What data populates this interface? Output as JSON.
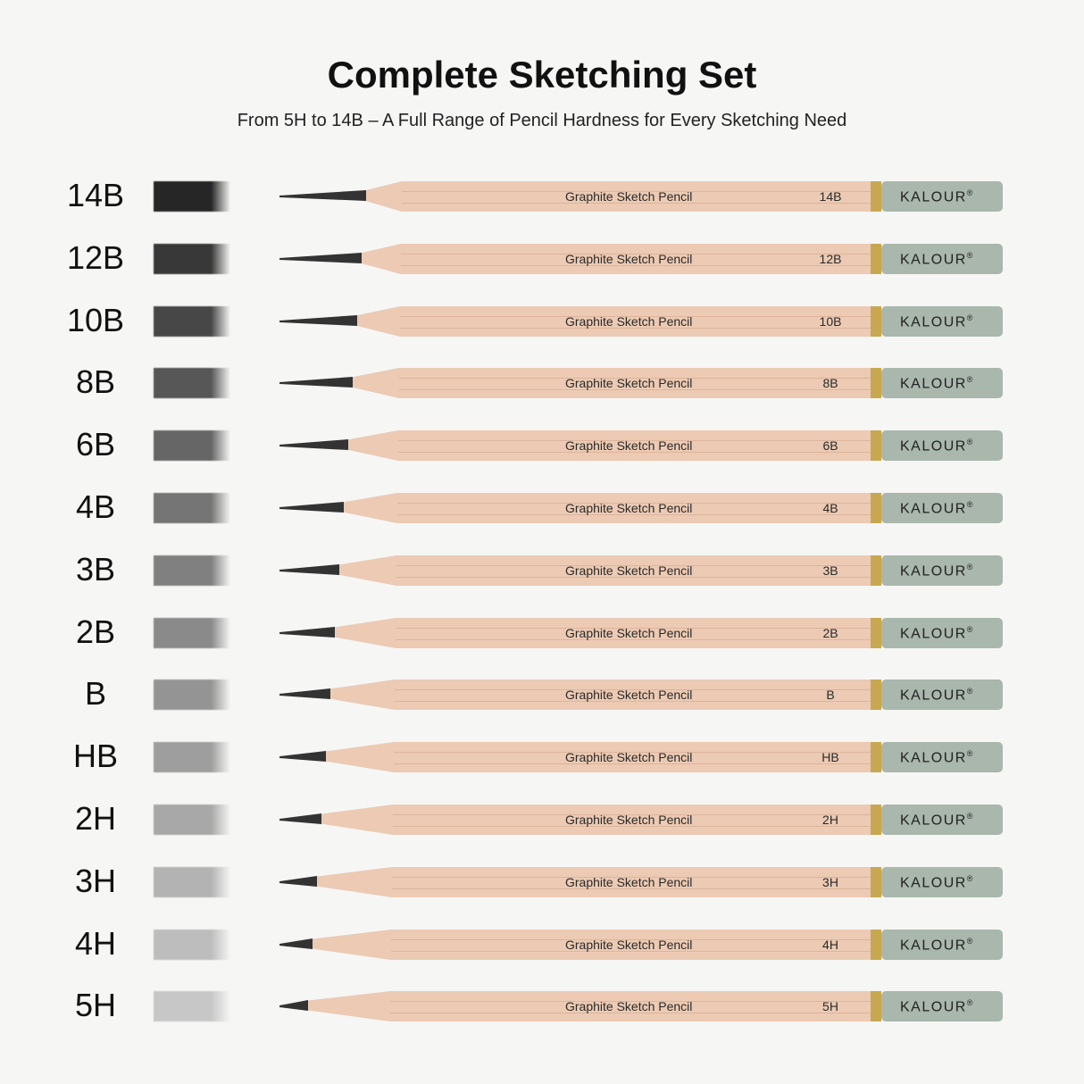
{
  "title": "Complete Sketching Set",
  "subtitle": "From 5H to 14B – A Full Range of Pencil Hardness for Every Sketching Need",
  "pencil_text": "Graphite Sketch Pencil",
  "brand": "KALOUR",
  "brand_mark": "®",
  "colors": {
    "wood": "#eccab3",
    "cap": "#a9b7ad",
    "ferrule": "#c7a850",
    "graphite": "#333333"
  },
  "pencils": [
    {
      "grade": "14B",
      "swatch_shade": 0.85
    },
    {
      "grade": "12B",
      "swatch_shade": 0.78
    },
    {
      "grade": "10B",
      "swatch_shade": 0.72
    },
    {
      "grade": "8B",
      "swatch_shade": 0.66
    },
    {
      "grade": "6B",
      "swatch_shade": 0.6
    },
    {
      "grade": "4B",
      "swatch_shade": 0.54
    },
    {
      "grade": "3B",
      "swatch_shade": 0.5
    },
    {
      "grade": "2B",
      "swatch_shade": 0.46
    },
    {
      "grade": "B",
      "swatch_shade": 0.42
    },
    {
      "grade": "HB",
      "swatch_shade": 0.38
    },
    {
      "grade": "2H",
      "swatch_shade": 0.34
    },
    {
      "grade": "3H",
      "swatch_shade": 0.3
    },
    {
      "grade": "4H",
      "swatch_shade": 0.26
    },
    {
      "grade": "5H",
      "swatch_shade": 0.22
    }
  ]
}
